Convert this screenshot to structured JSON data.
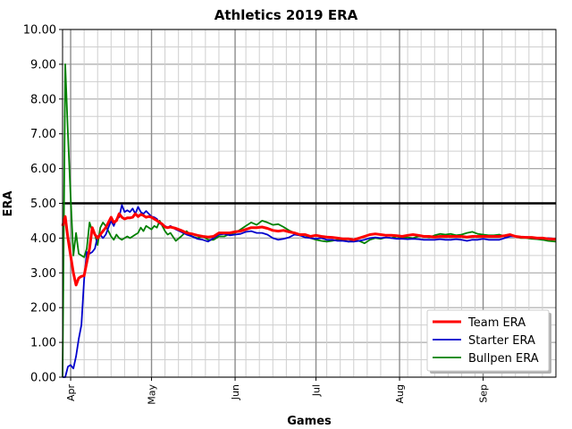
{
  "chart_data": {
    "type": "line",
    "title": "Athletics 2019 ERA",
    "xlabel": "Games",
    "ylabel": "ERA",
    "xlim": [
      0,
      183
    ],
    "ylim": [
      0,
      10
    ],
    "yticks": [
      "0.00",
      "1.00",
      "2.00",
      "3.00",
      "4.00",
      "5.00",
      "6.00",
      "7.00",
      "8.00",
      "9.00",
      "10.00"
    ],
    "xticks": [
      {
        "label": "Apr",
        "x": 3
      },
      {
        "label": "May",
        "x": 33
      },
      {
        "label": "Jun",
        "x": 64
      },
      {
        "label": "Jul",
        "x": 94
      },
      {
        "label": "Aug",
        "x": 125
      },
      {
        "label": "Sep",
        "x": 156
      }
    ],
    "reference_line": {
      "y": 5.0,
      "color": "#000000"
    },
    "grid": true,
    "legend_position": "bottom-right",
    "series": [
      {
        "name": "Team ERA",
        "color": "#ff0000",
        "x": [
          0,
          1,
          2,
          3,
          4,
          5,
          6,
          7,
          8,
          9,
          10,
          11,
          12,
          13,
          14,
          15,
          16,
          17,
          18,
          19,
          20,
          21,
          22,
          23,
          24,
          25,
          26,
          27,
          28,
          29,
          30,
          31,
          32,
          33,
          34,
          35,
          36,
          37,
          38,
          39,
          40,
          42,
          44,
          46,
          48,
          50,
          52,
          54,
          56,
          58,
          60,
          62,
          64,
          66,
          68,
          70,
          72,
          74,
          76,
          78,
          80,
          82,
          84,
          86,
          88,
          90,
          92,
          94,
          96,
          98,
          100,
          102,
          104,
          106,
          108,
          110,
          112,
          114,
          116,
          118,
          120,
          122,
          124,
          126,
          128,
          130,
          132,
          134,
          136,
          138,
          140,
          142,
          144,
          146,
          148,
          150,
          152,
          154,
          156,
          158,
          160,
          162,
          164,
          166,
          168,
          170,
          172,
          174,
          176,
          178,
          180,
          183
        ],
        "y": [
          4.35,
          4.62,
          4.0,
          3.5,
          3.0,
          2.65,
          2.85,
          2.9,
          2.92,
          3.3,
          3.7,
          4.3,
          4.1,
          4.0,
          4.1,
          4.2,
          4.3,
          4.45,
          4.6,
          4.45,
          4.5,
          4.7,
          4.6,
          4.55,
          4.58,
          4.58,
          4.6,
          4.7,
          4.62,
          4.68,
          4.65,
          4.6,
          4.62,
          4.6,
          4.55,
          4.5,
          4.45,
          4.4,
          4.32,
          4.3,
          4.32,
          4.28,
          4.22,
          4.15,
          4.12,
          4.08,
          4.05,
          4.03,
          4.05,
          4.15,
          4.15,
          4.15,
          4.18,
          4.2,
          4.25,
          4.3,
          4.3,
          4.32,
          4.28,
          4.22,
          4.2,
          4.22,
          4.18,
          4.15,
          4.1,
          4.1,
          4.05,
          4.08,
          4.05,
          4.03,
          4.02,
          4.0,
          3.98,
          3.98,
          3.95,
          4.0,
          4.05,
          4.1,
          4.12,
          4.1,
          4.08,
          4.08,
          4.07,
          4.05,
          4.08,
          4.1,
          4.08,
          4.05,
          4.05,
          4.03,
          4.05,
          4.05,
          4.05,
          4.05,
          4.05,
          4.03,
          4.05,
          4.05,
          4.05,
          4.05,
          4.05,
          4.05,
          4.07,
          4.1,
          4.05,
          4.03,
          4.02,
          4.02,
          4.0,
          4.0,
          3.98,
          3.97
        ]
      },
      {
        "name": "Starter ERA",
        "color": "#0000cc",
        "x": [
          0,
          1,
          2,
          3,
          4,
          5,
          6,
          7,
          8,
          9,
          10,
          11,
          12,
          13,
          14,
          15,
          16,
          17,
          18,
          19,
          20,
          21,
          22,
          23,
          24,
          25,
          26,
          27,
          28,
          29,
          30,
          31,
          32,
          33,
          34,
          35,
          36,
          37,
          38,
          39,
          40,
          42,
          44,
          46,
          48,
          50,
          52,
          54,
          56,
          58,
          60,
          62,
          64,
          66,
          68,
          70,
          72,
          74,
          76,
          78,
          80,
          82,
          84,
          86,
          88,
          90,
          92,
          94,
          96,
          98,
          100,
          102,
          104,
          106,
          108,
          110,
          112,
          114,
          116,
          118,
          120,
          122,
          124,
          126,
          128,
          130,
          132,
          134,
          136,
          138,
          140,
          142,
          144,
          146,
          148,
          150,
          152,
          154,
          156,
          158,
          160,
          162,
          164,
          166,
          168,
          170,
          172,
          174,
          176,
          178,
          180,
          183
        ],
        "y": [
          0.0,
          0.0,
          0.3,
          0.35,
          0.25,
          0.6,
          1.1,
          1.5,
          2.8,
          3.6,
          3.55,
          3.6,
          3.7,
          4.05,
          4.1,
          4.0,
          4.1,
          4.3,
          4.5,
          4.35,
          4.55,
          4.6,
          4.95,
          4.75,
          4.8,
          4.75,
          4.85,
          4.7,
          4.9,
          4.75,
          4.7,
          4.78,
          4.7,
          4.62,
          4.6,
          4.55,
          4.42,
          4.38,
          4.35,
          4.3,
          4.35,
          4.25,
          4.18,
          4.1,
          4.05,
          3.98,
          3.95,
          3.9,
          4.0,
          4.1,
          4.12,
          4.08,
          4.1,
          4.12,
          4.18,
          4.2,
          4.15,
          4.15,
          4.1,
          4.0,
          3.95,
          3.98,
          4.02,
          4.1,
          4.08,
          4.02,
          4.0,
          3.98,
          4.0,
          3.95,
          3.95,
          3.92,
          3.92,
          3.9,
          3.9,
          3.92,
          3.95,
          4.0,
          4.02,
          4.0,
          4.02,
          4.0,
          3.98,
          3.98,
          3.97,
          3.98,
          3.97,
          3.95,
          3.95,
          3.95,
          3.97,
          3.95,
          3.95,
          3.97,
          3.95,
          3.92,
          3.95,
          3.95,
          3.98,
          3.95,
          3.95,
          3.95,
          4.0,
          4.05,
          4.05,
          4.02,
          4.03,
          4.02,
          3.98,
          4.0,
          4.0,
          3.98
        ]
      },
      {
        "name": "Bullpen ERA",
        "color": "#008000",
        "x": [
          0,
          1,
          2,
          3,
          4,
          5,
          6,
          7,
          8,
          9,
          10,
          11,
          12,
          13,
          14,
          15,
          16,
          17,
          18,
          19,
          20,
          21,
          22,
          23,
          24,
          25,
          26,
          27,
          28,
          29,
          30,
          31,
          32,
          33,
          34,
          35,
          36,
          37,
          38,
          39,
          40,
          42,
          44,
          46,
          48,
          50,
          52,
          54,
          56,
          58,
          60,
          62,
          64,
          66,
          68,
          70,
          72,
          74,
          76,
          78,
          80,
          82,
          84,
          86,
          88,
          90,
          92,
          94,
          96,
          98,
          100,
          102,
          104,
          106,
          108,
          110,
          112,
          114,
          116,
          118,
          120,
          122,
          124,
          126,
          128,
          130,
          132,
          134,
          136,
          138,
          140,
          142,
          144,
          146,
          148,
          150,
          152,
          154,
          156,
          158,
          160,
          162,
          164,
          166,
          168,
          170,
          172,
          174,
          176,
          178,
          180,
          183
        ],
        "y": [
          0.0,
          9.0,
          7.0,
          5.2,
          3.5,
          4.15,
          3.55,
          3.5,
          3.45,
          3.7,
          4.45,
          4.2,
          4.1,
          3.8,
          4.3,
          4.45,
          4.35,
          4.2,
          4.05,
          3.95,
          4.1,
          4.0,
          3.95,
          4.0,
          4.05,
          4.0,
          4.05,
          4.1,
          4.15,
          4.3,
          4.2,
          4.35,
          4.3,
          4.25,
          4.35,
          4.3,
          4.5,
          4.35,
          4.2,
          4.1,
          4.15,
          3.92,
          4.05,
          4.2,
          4.05,
          4.0,
          4.05,
          3.95,
          3.95,
          4.05,
          4.05,
          4.12,
          4.15,
          4.25,
          4.35,
          4.45,
          4.38,
          4.5,
          4.45,
          4.38,
          4.4,
          4.32,
          4.22,
          4.15,
          4.1,
          4.08,
          4.0,
          3.95,
          3.92,
          3.9,
          3.92,
          3.95,
          3.95,
          3.9,
          3.92,
          3.92,
          3.85,
          3.95,
          4.0,
          3.98,
          4.02,
          4.0,
          4.05,
          4.0,
          4.02,
          4.0,
          4.05,
          4.05,
          4.02,
          4.08,
          4.12,
          4.1,
          4.12,
          4.08,
          4.1,
          4.15,
          4.18,
          4.12,
          4.1,
          4.08,
          4.08,
          4.1,
          4.05,
          4.1,
          4.05,
          4.0,
          4.0,
          3.98,
          3.97,
          3.95,
          3.92,
          3.9
        ]
      }
    ]
  }
}
